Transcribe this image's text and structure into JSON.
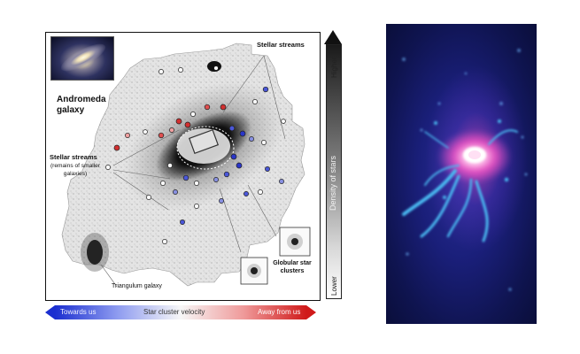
{
  "left_figure": {
    "labels": {
      "andromeda_title": "Andromeda galaxy",
      "stellar_streams_top": "Stellar streams",
      "stellar_streams_left": "Stellar streams",
      "stellar_streams_left_sub": "(remains of smaller galaxies)",
      "triangulum": "Triangulum galaxy",
      "globular": "Globular star clusters"
    },
    "density_scale": {
      "title": "Density of stars",
      "high": "Higher",
      "low": "Lower"
    },
    "velocity_scale": {
      "title": "Star cluster velocity",
      "left": "Towards us",
      "right": "Away from us",
      "colors": {
        "towards": "#1b2fd0",
        "away": "#d01a1a"
      }
    }
  },
  "right_image": {
    "colors": {
      "background": "#1a1f7a",
      "core": "#ff66cc",
      "filaments": "#49b8f0"
    }
  }
}
